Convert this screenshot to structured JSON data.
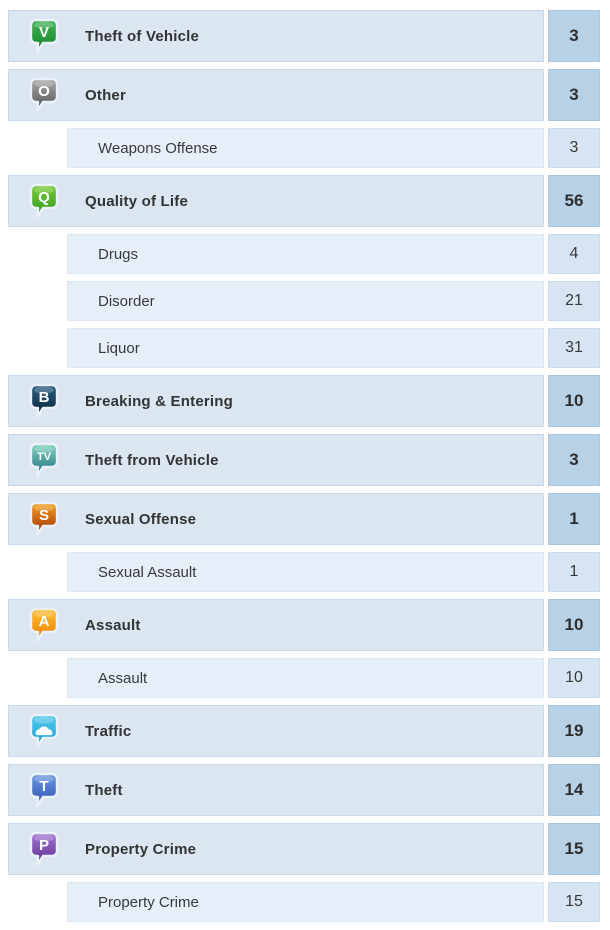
{
  "list": {
    "name": "crime-category-list",
    "colors": {
      "page_bg": "#ffffff",
      "main_row_bg": "#dbe6f1",
      "main_row_border": "#c8d9e9",
      "main_count_bg": "#b7d1e7",
      "sub_row_bg": "#e6eef7",
      "sub_count_bg": "#d7e4f2",
      "label_text": "#333333"
    },
    "rows": [
      {
        "type": "main",
        "label": "Theft of Vehicle",
        "count": "3",
        "icon": {
          "name": "theft-of-vehicle-icon",
          "glyph": "V",
          "color_top": "#45b156",
          "color_bottom": "#13832a"
        }
      },
      {
        "type": "main",
        "label": "Other",
        "count": "3",
        "icon": {
          "name": "other-icon",
          "glyph": "O",
          "color_top": "#ababab",
          "color_bottom": "#4f4f4f"
        }
      },
      {
        "type": "sub",
        "label": "Weapons Offense",
        "count": "3"
      },
      {
        "type": "main",
        "label": "Quality of Life",
        "count": "56",
        "icon": {
          "name": "quality-of-life-icon",
          "glyph": "Q",
          "color_top": "#7bca36",
          "color_bottom": "#2d9a20"
        }
      },
      {
        "type": "sub",
        "label": "Drugs",
        "count": "4"
      },
      {
        "type": "sub",
        "label": "Disorder",
        "count": "21"
      },
      {
        "type": "sub",
        "label": "Liquor",
        "count": "31"
      },
      {
        "type": "main",
        "label": "Breaking & Entering",
        "count": "10",
        "icon": {
          "name": "breaking-and-entering-icon",
          "glyph": "B",
          "color_top": "#2a6285",
          "color_bottom": "#0b2033"
        }
      },
      {
        "type": "main",
        "label": "Theft from Vehicle",
        "count": "3",
        "icon": {
          "name": "theft-from-vehicle-icon",
          "glyph": "TV",
          "color_top": "#7fd4bc",
          "color_bottom": "#206e81"
        }
      },
      {
        "type": "main",
        "label": "Sexual Offense",
        "count": "1",
        "icon": {
          "name": "sexual-offense-icon",
          "glyph": "S",
          "color_top": "#f6a21c",
          "color_bottom": "#9e2a0a"
        }
      },
      {
        "type": "sub",
        "label": "Sexual Assault",
        "count": "1"
      },
      {
        "type": "main",
        "label": "Assault",
        "count": "10",
        "icon": {
          "name": "assault-icon",
          "glyph": "A",
          "color_top": "#fcc033",
          "color_bottom": "#ee7d06"
        }
      },
      {
        "type": "sub",
        "label": "Assault",
        "count": "10"
      },
      {
        "type": "main",
        "label": "Traffic",
        "count": "19",
        "icon": {
          "name": "traffic-icon",
          "glyph": "car",
          "color_top": "#58c9ec",
          "color_bottom": "#149bd2"
        }
      },
      {
        "type": "main",
        "label": "Theft",
        "count": "14",
        "icon": {
          "name": "theft-icon",
          "glyph": "T",
          "color_top": "#6f9ae0",
          "color_bottom": "#2b50b5"
        }
      },
      {
        "type": "main",
        "label": "Property Crime",
        "count": "15",
        "icon": {
          "name": "property-crime-icon",
          "glyph": "P",
          "color_top": "#a678d2",
          "color_bottom": "#5c2a91"
        }
      },
      {
        "type": "sub",
        "label": "Property Crime",
        "count": "15"
      }
    ]
  }
}
